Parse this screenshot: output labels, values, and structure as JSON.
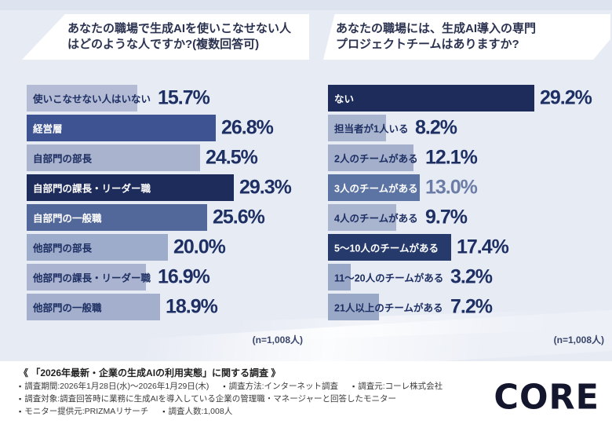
{
  "colors": {
    "page_bg": "#e7ebf4",
    "dark_navy": "#1e2c5c",
    "percent_text": "#1d2f63",
    "muted_percent_text": "#6b7da6",
    "title_text": "#2b3250"
  },
  "chart_data": [
    {
      "type": "bar",
      "orientation": "horizontal",
      "title": "あなたの職場で生成AIを使いこなせない人はどのような人ですか?(複数回答可)",
      "title_lines": [
        "あなたの職場で生成AIを使いこなせない人",
        "はどのような人ですか?(複数回答可)"
      ],
      "unit": "%",
      "xlim": [
        0,
        30
      ],
      "n_label": "(n=1,008人)",
      "categories": [
        "使いこなせない人はいない",
        "経営層",
        "自部門の部長",
        "自部門の課長・リーダー職",
        "自部門の一般職",
        "他部門の部長",
        "他部門の課長・リーダー職",
        "他部門の一般職"
      ],
      "values": [
        15.7,
        26.8,
        24.5,
        29.3,
        25.6,
        20.0,
        16.9,
        18.9
      ],
      "items": [
        {
          "label": "使いこなせない人はいない",
          "value": 15.7,
          "display": "15.7%",
          "bar_color": "#b4bbd4",
          "label_color": "#1d2f63",
          "pct_color": "#1d2f63"
        },
        {
          "label": "経営層",
          "value": 26.8,
          "display": "26.8%",
          "bar_color": "#3e5492",
          "label_color": "#ffffff",
          "pct_color": "#1d2f63"
        },
        {
          "label": "自部門の部長",
          "value": 24.5,
          "display": "24.5%",
          "bar_color": "#a9b3ce",
          "label_color": "#1d2f63",
          "pct_color": "#1d2f63"
        },
        {
          "label": "自部門の課長・リーダー職",
          "value": 29.3,
          "display": "29.3%",
          "bar_color": "#1e2c5c",
          "label_color": "#ffffff",
          "pct_color": "#1d2f63"
        },
        {
          "label": "自部門の一般職",
          "value": 25.6,
          "display": "25.6%",
          "bar_color": "#52689a",
          "label_color": "#ffffff",
          "pct_color": "#1d2f63"
        },
        {
          "label": "他部門の部長",
          "value": 20.0,
          "display": "20.0%",
          "bar_color": "#9dacca",
          "label_color": "#1d2f63",
          "pct_color": "#1d2f63"
        },
        {
          "label": "他部門の課長・リーダー職",
          "value": 16.9,
          "display": "16.9%",
          "bar_color": "#aab3cf",
          "label_color": "#1d2f63",
          "pct_color": "#1d2f63"
        },
        {
          "label": "他部門の一般職",
          "value": 18.9,
          "display": "18.9%",
          "bar_color": "#a3afcc",
          "label_color": "#1d2f63",
          "pct_color": "#1d2f63"
        }
      ]
    },
    {
      "type": "bar",
      "orientation": "horizontal",
      "title": "あなたの職場には、生成AI導入の専門プロジェクトチームはありますか?",
      "title_lines": [
        "あなたの職場には、生成AI導入の専門",
        "プロジェクトチームはありますか?"
      ],
      "unit": "%",
      "xlim": [
        0,
        30
      ],
      "n_label": "(n=1,008人)",
      "categories": [
        "ない",
        "担当者が1人いる",
        "2人のチームがある",
        "3人のチームがある",
        "4人のチームがある",
        "5〜10人のチームがある",
        "11〜20人のチームがある",
        "21人以上のチームがある"
      ],
      "values": [
        29.2,
        8.2,
        12.1,
        13.0,
        9.7,
        17.4,
        3.2,
        7.2
      ],
      "items": [
        {
          "label": "ない",
          "value": 29.2,
          "display": "29.2%",
          "bar_color": "#1e2c5c",
          "label_color": "#ffffff",
          "pct_color": "#1d2f63"
        },
        {
          "label": "担当者が1人いる",
          "value": 8.2,
          "display": "8.2%",
          "bar_color": "#a9b4ce",
          "label_color": "#1d2f63",
          "pct_color": "#1d2f63"
        },
        {
          "label": "2人のチームがある",
          "value": 12.1,
          "display": "12.1%",
          "bar_color": "#a3afcb",
          "label_color": "#1d2f63",
          "pct_color": "#1d2f63"
        },
        {
          "label": "3人のチームがある",
          "value": 13.0,
          "display": "13.0%",
          "bar_color": "#5b74a4",
          "label_color": "#ffffff",
          "pct_color": "#6b7da6"
        },
        {
          "label": "4人のチームがある",
          "value": 9.7,
          "display": "9.7%",
          "bar_color": "#a9b4ce",
          "label_color": "#1d2f63",
          "pct_color": "#1d2f63"
        },
        {
          "label": "5〜10人のチームがある",
          "value": 17.4,
          "display": "17.4%",
          "bar_color": "#263a6b",
          "label_color": "#ffffff",
          "pct_color": "#1d2f63"
        },
        {
          "label": "11〜20人のチームがある",
          "value": 3.2,
          "display": "3.2%",
          "bar_color": "#9aa8c8",
          "label_color": "#1d2f63",
          "pct_color": "#1d2f63"
        },
        {
          "label": "21人以上のチームがある",
          "value": 7.2,
          "display": "7.2%",
          "bar_color": "#9aa8c8",
          "label_color": "#1d2f63",
          "pct_color": "#1d2f63"
        }
      ]
    }
  ],
  "footer": {
    "headline": "《 「2026年最新・企業の生成AIの利用実態」に関する調査 》",
    "bullet": "▪",
    "lines": [
      [
        "調査期間:2026年1月28日(水)〜2026年1月29日(木)",
        "調査方法:インターネット調査",
        "調査元:コーレ株式会社"
      ],
      [
        "調査対象:調査回答時に業務に生成AIを導入している企業の管理職・マネージャーと回答したモニター"
      ],
      [
        "モニター提供元:PRIZMAリサーチ",
        "調査人数:1,008人"
      ]
    ]
  },
  "brand": {
    "logo_text": "CORE"
  }
}
